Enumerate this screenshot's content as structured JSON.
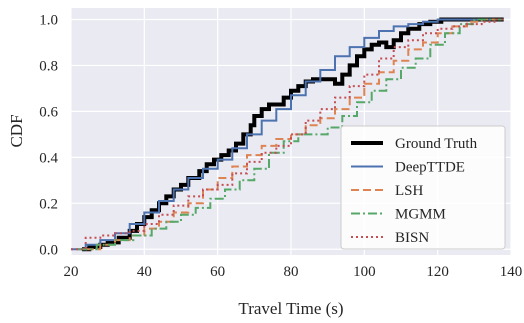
{
  "chart_data": {
    "type": "line",
    "title": "",
    "xlabel": "Travel Time (s)",
    "ylabel": "CDF",
    "xlim": [
      20,
      140
    ],
    "ylim": [
      -0.025,
      1.05
    ],
    "xticks": [
      20,
      40,
      60,
      80,
      100,
      120,
      140
    ],
    "yticks": [
      0.0,
      0.2,
      0.4,
      0.6,
      0.8,
      1.0
    ],
    "xtick_labels": [
      "20",
      "40",
      "60",
      "80",
      "100",
      "120",
      "140"
    ],
    "ytick_labels": [
      "0.0",
      "0.2",
      "0.4",
      "0.6",
      "0.8",
      "1.0"
    ],
    "grid": true,
    "background": "#eaeaf2",
    "legend_position": "lower-right",
    "series": [
      {
        "name": "Ground Truth",
        "color": "#000000",
        "style": "solid",
        "width": 4,
        "points": [
          [
            23,
            0.0
          ],
          [
            25,
            0.01
          ],
          [
            28,
            0.02
          ],
          [
            30,
            0.03
          ],
          [
            33,
            0.05
          ],
          [
            36,
            0.08
          ],
          [
            38,
            0.11
          ],
          [
            40,
            0.14
          ],
          [
            42,
            0.17
          ],
          [
            44,
            0.2
          ],
          [
            46,
            0.23
          ],
          [
            48,
            0.26
          ],
          [
            50,
            0.28
          ],
          [
            52,
            0.31
          ],
          [
            55,
            0.34
          ],
          [
            57,
            0.37
          ],
          [
            59,
            0.39
          ],
          [
            61,
            0.41
          ],
          [
            63,
            0.43
          ],
          [
            65,
            0.46
          ],
          [
            67,
            0.5
          ],
          [
            69,
            0.54
          ],
          [
            70,
            0.58
          ],
          [
            72,
            0.61
          ],
          [
            74,
            0.63
          ],
          [
            76,
            0.63
          ],
          [
            78,
            0.66
          ],
          [
            80,
            0.69
          ],
          [
            82,
            0.71
          ],
          [
            84,
            0.73
          ],
          [
            86,
            0.74
          ],
          [
            88,
            0.74
          ],
          [
            90,
            0.74
          ],
          [
            92,
            0.72
          ],
          [
            94,
            0.76
          ],
          [
            96,
            0.8
          ],
          [
            98,
            0.84
          ],
          [
            100,
            0.87
          ],
          [
            102,
            0.89
          ],
          [
            104,
            0.9
          ],
          [
            106,
            0.88
          ],
          [
            108,
            0.91
          ],
          [
            110,
            0.94
          ],
          [
            112,
            0.96
          ],
          [
            115,
            0.98
          ],
          [
            118,
            0.99
          ],
          [
            121,
            1.0
          ],
          [
            138,
            1.0
          ]
        ]
      },
      {
        "name": "DeepTTDE",
        "color": "#4c72b0",
        "style": "solid",
        "width": 2,
        "points": [
          [
            20,
            0.0
          ],
          [
            24,
            0.02
          ],
          [
            28,
            0.04
          ],
          [
            32,
            0.07
          ],
          [
            36,
            0.11
          ],
          [
            40,
            0.16
          ],
          [
            44,
            0.21
          ],
          [
            48,
            0.26
          ],
          [
            52,
            0.31
          ],
          [
            56,
            0.35
          ],
          [
            60,
            0.39
          ],
          [
            64,
            0.44
          ],
          [
            68,
            0.5
          ],
          [
            72,
            0.56
          ],
          [
            76,
            0.61
          ],
          [
            80,
            0.67
          ],
          [
            84,
            0.73
          ],
          [
            88,
            0.78
          ],
          [
            92,
            0.84
          ],
          [
            96,
            0.88
          ],
          [
            100,
            0.92
          ],
          [
            104,
            0.95
          ],
          [
            108,
            0.97
          ],
          [
            112,
            0.98
          ],
          [
            116,
            0.99
          ],
          [
            120,
            1.0
          ],
          [
            138,
            1.0
          ]
        ]
      },
      {
        "name": "LSH",
        "color": "#dd8452",
        "style": "dashed",
        "width": 2,
        "points": [
          [
            24,
            0.0
          ],
          [
            28,
            0.02
          ],
          [
            32,
            0.04
          ],
          [
            36,
            0.06
          ],
          [
            40,
            0.09
          ],
          [
            44,
            0.12
          ],
          [
            48,
            0.16
          ],
          [
            52,
            0.2
          ],
          [
            56,
            0.26
          ],
          [
            60,
            0.31
          ],
          [
            64,
            0.36
          ],
          [
            68,
            0.41
          ],
          [
            72,
            0.45
          ],
          [
            76,
            0.48
          ],
          [
            80,
            0.5
          ],
          [
            84,
            0.54
          ],
          [
            88,
            0.57
          ],
          [
            92,
            0.61
          ],
          [
            96,
            0.66
          ],
          [
            100,
            0.72
          ],
          [
            104,
            0.77
          ],
          [
            108,
            0.82
          ],
          [
            112,
            0.87
          ],
          [
            116,
            0.9
          ],
          [
            120,
            0.94
          ],
          [
            124,
            0.97
          ],
          [
            128,
            0.99
          ],
          [
            132,
            1.0
          ],
          [
            138,
            1.0
          ]
        ]
      },
      {
        "name": "MGMM",
        "color": "#55a868",
        "style": "dashdot",
        "width": 2,
        "points": [
          [
            22,
            0.0
          ],
          [
            27,
            0.02
          ],
          [
            32,
            0.04
          ],
          [
            37,
            0.06
          ],
          [
            42,
            0.09
          ],
          [
            46,
            0.12
          ],
          [
            50,
            0.15
          ],
          [
            54,
            0.18
          ],
          [
            58,
            0.22
          ],
          [
            62,
            0.26
          ],
          [
            66,
            0.3
          ],
          [
            70,
            0.35
          ],
          [
            74,
            0.42
          ],
          [
            78,
            0.47
          ],
          [
            82,
            0.5
          ],
          [
            86,
            0.5
          ],
          [
            90,
            0.53
          ],
          [
            94,
            0.58
          ],
          [
            98,
            0.64
          ],
          [
            102,
            0.69
          ],
          [
            106,
            0.74
          ],
          [
            110,
            0.79
          ],
          [
            114,
            0.83
          ],
          [
            118,
            0.89
          ],
          [
            122,
            0.94
          ],
          [
            126,
            0.98
          ],
          [
            130,
            1.0
          ],
          [
            138,
            1.0
          ]
        ]
      },
      {
        "name": "BISN",
        "color": "#c44e52",
        "style": "dotted",
        "width": 2,
        "points": [
          [
            20,
            0.0
          ],
          [
            24,
            0.05
          ],
          [
            28,
            0.06
          ],
          [
            32,
            0.07
          ],
          [
            36,
            0.08
          ],
          [
            40,
            0.11
          ],
          [
            44,
            0.15
          ],
          [
            48,
            0.19
          ],
          [
            52,
            0.23
          ],
          [
            56,
            0.26
          ],
          [
            60,
            0.28
          ],
          [
            64,
            0.33
          ],
          [
            68,
            0.38
          ],
          [
            72,
            0.42
          ],
          [
            76,
            0.45
          ],
          [
            80,
            0.5
          ],
          [
            84,
            0.56
          ],
          [
            88,
            0.61
          ],
          [
            92,
            0.66
          ],
          [
            96,
            0.71
          ],
          [
            100,
            0.76
          ],
          [
            104,
            0.83
          ],
          [
            108,
            0.88
          ],
          [
            112,
            0.91
          ],
          [
            116,
            0.94
          ],
          [
            120,
            0.96
          ],
          [
            124,
            0.97
          ],
          [
            128,
            0.98
          ],
          [
            132,
            0.99
          ],
          [
            136,
            1.0
          ],
          [
            138,
            1.0
          ]
        ]
      }
    ]
  }
}
